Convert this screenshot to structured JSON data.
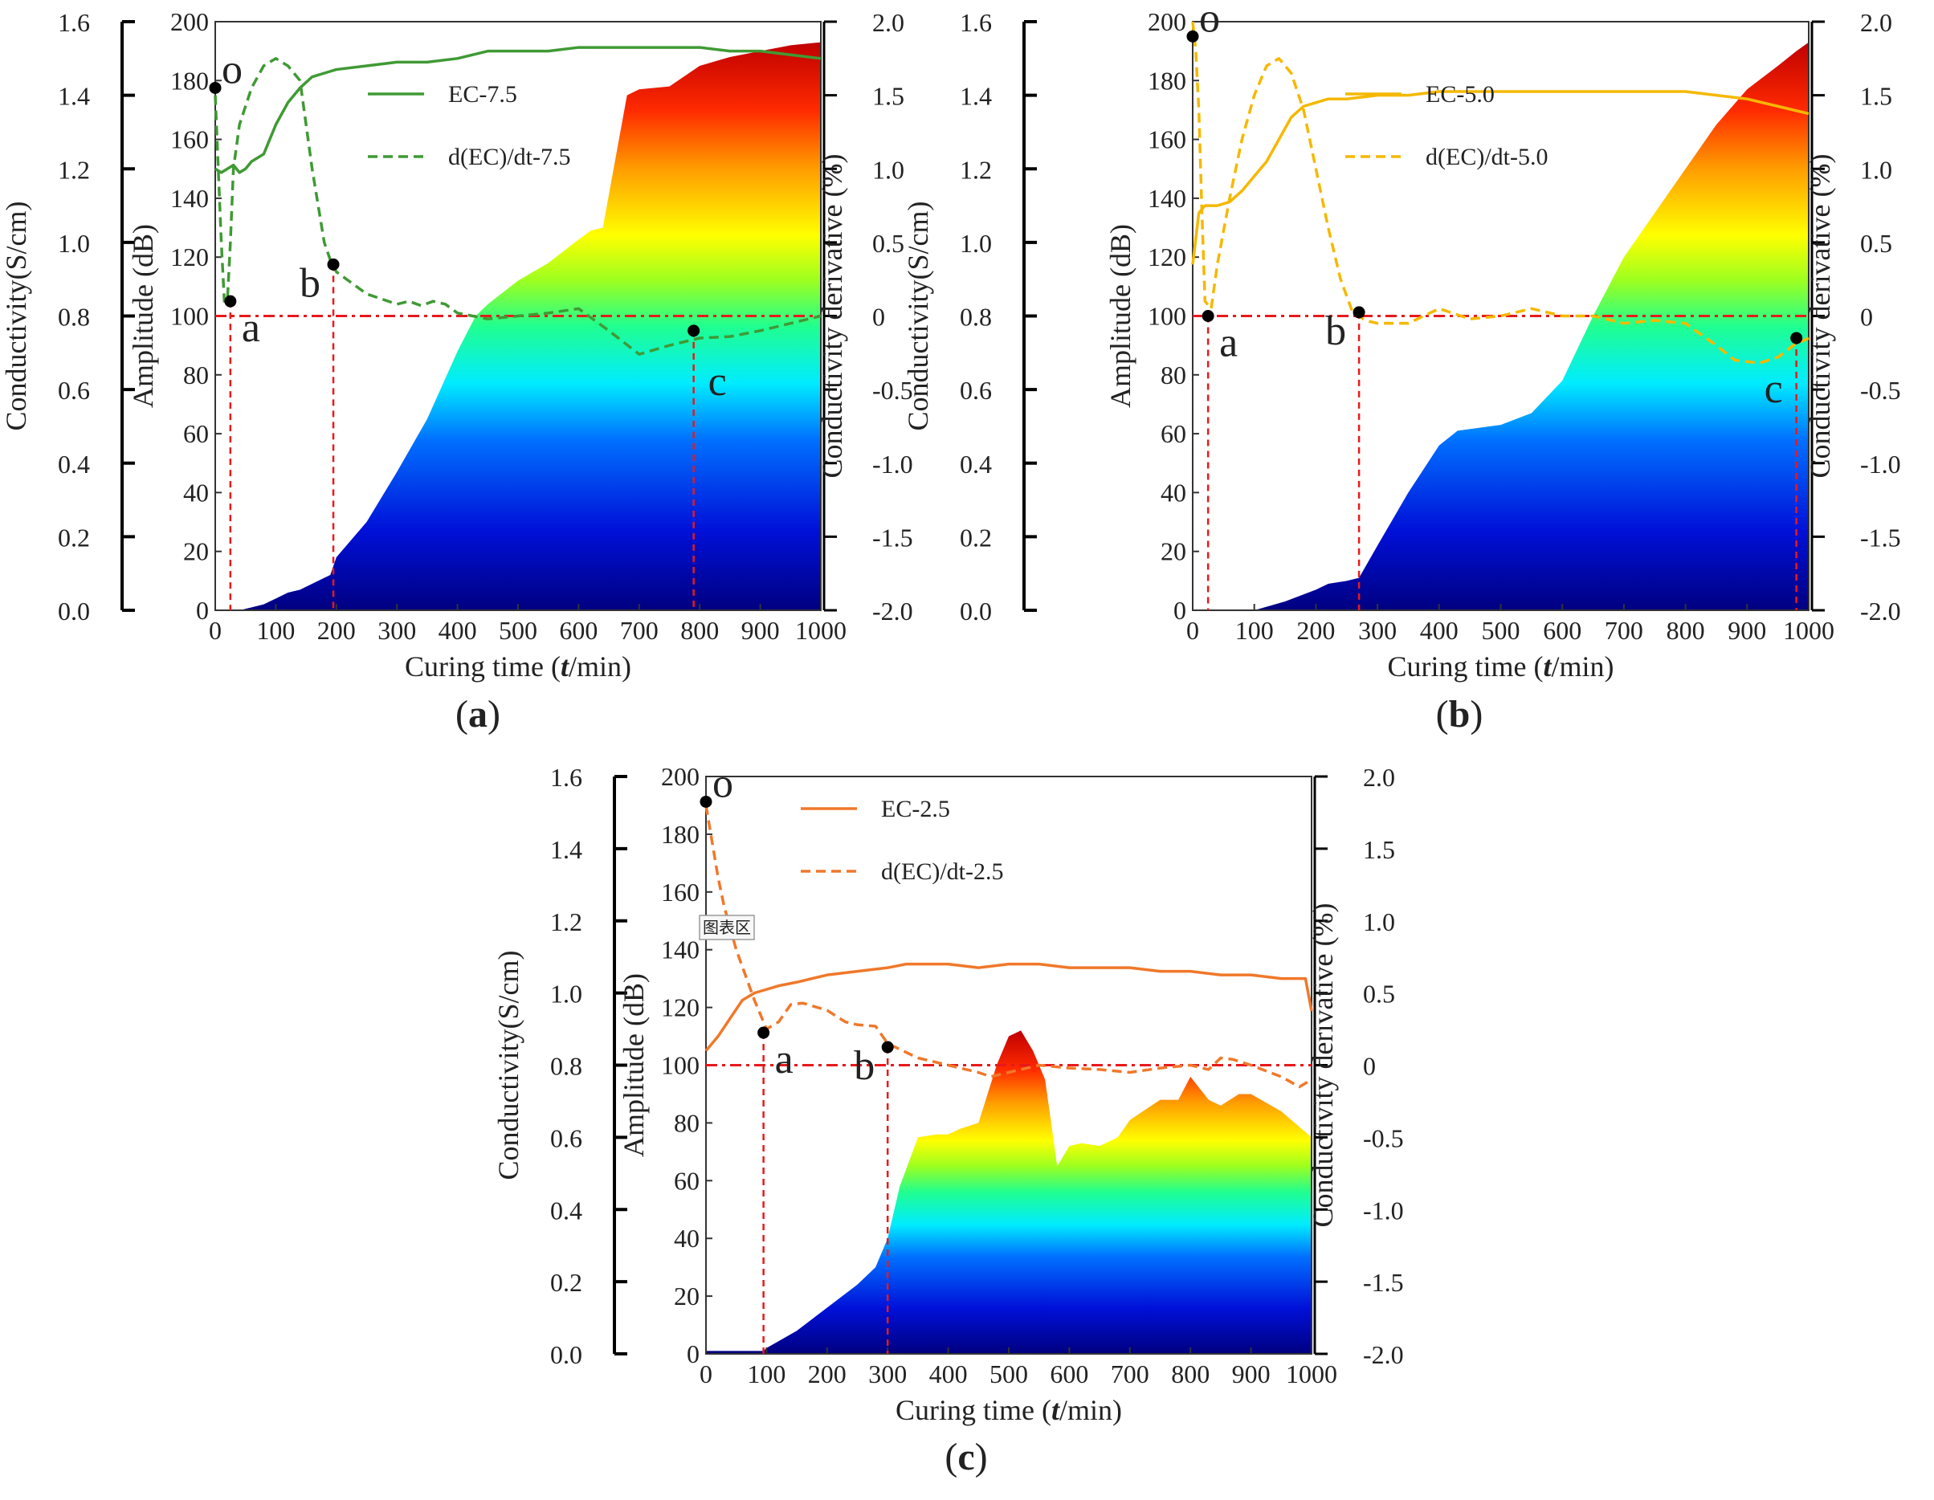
{
  "chart_data": [
    {
      "panel": "(a)",
      "panel_letter": "a",
      "type": "line",
      "xlabel": "Curing time (t/min)",
      "xlabel_pre": "Curing time (",
      "xlabel_t": "t",
      "xlabel_post": "/min)",
      "ylabel_left": "Conductivity(S/cm)",
      "ylabel_inner": "Amplitude (dB)",
      "ylabel_right": "Conductivity derivative (%)",
      "xlim": [
        0,
        1000
      ],
      "xticks": [
        "0",
        "100",
        "200",
        "300",
        "400",
        "500",
        "600",
        "700",
        "800",
        "900",
        "1000"
      ],
      "cond_ylim": [
        0,
        1.6
      ],
      "cond_ticks": [
        "0.0",
        "0.2",
        "0.4",
        "0.6",
        "0.8",
        "1.0",
        "1.2",
        "1.4",
        "1.6"
      ],
      "amp_ylim": [
        0,
        200
      ],
      "amp_ticks": [
        "0",
        "20",
        "40",
        "60",
        "80",
        "100",
        "120",
        "140",
        "160",
        "180",
        "200"
      ],
      "deriv_ylim": [
        -2,
        2
      ],
      "deriv_ticks": [
        "-2.0",
        "-1.5",
        "-1.0",
        "-0.5",
        "0",
        "0.5",
        "1.0",
        "1.5",
        "2.0"
      ],
      "color": "#3f9a34",
      "legend": {
        "ec": "EC-7.5",
        "deriv": "d(EC)/dt-7.5"
      },
      "series": [
        {
          "name": "EC-7.5",
          "style": "solid",
          "x": [
            0,
            10,
            20,
            30,
            40,
            50,
            60,
            70,
            80,
            100,
            120,
            140,
            160,
            180,
            200,
            250,
            300,
            350,
            400,
            450,
            500,
            550,
            600,
            650,
            700,
            750,
            800,
            850,
            900,
            950,
            1000
          ],
          "y": [
            1.2,
            1.19,
            1.2,
            1.21,
            1.19,
            1.2,
            1.22,
            1.23,
            1.24,
            1.32,
            1.38,
            1.42,
            1.45,
            1.46,
            1.47,
            1.48,
            1.49,
            1.49,
            1.5,
            1.52,
            1.52,
            1.52,
            1.53,
            1.53,
            1.53,
            1.53,
            1.53,
            1.52,
            1.52,
            1.51,
            1.5
          ]
        },
        {
          "name": "d(EC)/dt-7.5",
          "style": "dashed",
          "x": [
            0,
            10,
            15,
            20,
            25,
            30,
            40,
            60,
            80,
            100,
            120,
            140,
            160,
            180,
            190,
            200,
            250,
            300,
            320,
            340,
            360,
            380,
            400,
            450,
            500,
            550,
            600,
            650,
            700,
            750,
            800,
            850,
            900,
            950,
            1000
          ],
          "y": [
            1.5,
            0.5,
            0.1,
            0.1,
            0.5,
            1.0,
            1.3,
            1.55,
            1.7,
            1.75,
            1.7,
            1.6,
            1.0,
            0.5,
            0.38,
            0.3,
            0.15,
            0.08,
            0.1,
            0.07,
            0.1,
            0.08,
            0.02,
            -0.02,
            0,
            0.02,
            0.05,
            -0.1,
            -0.26,
            -0.2,
            -0.15,
            -0.14,
            -0.1,
            -0.05,
            0
          ]
        },
        {
          "name": "Amplitude",
          "style": "filled",
          "x": [
            0,
            20,
            40,
            60,
            80,
            100,
            120,
            140,
            160,
            180,
            190,
            195,
            200,
            250,
            300,
            350,
            400,
            430,
            450,
            500,
            550,
            600,
            620,
            640,
            680,
            700,
            750,
            800,
            850,
            900,
            950,
            1000
          ],
          "y": [
            0,
            0,
            0,
            1,
            2,
            4,
            6,
            7,
            9,
            11,
            12,
            15,
            18,
            30,
            47,
            65,
            88,
            100,
            104,
            112,
            118,
            126,
            129,
            130,
            175,
            177,
            178,
            185,
            188,
            190,
            192,
            193
          ]
        }
      ],
      "reference_lines": {
        "horizontal_deriv": 0,
        "vertical_x": [
          25,
          195,
          790
        ]
      },
      "points": [
        {
          "label": "o",
          "x": 0,
          "cond": 1.42
        },
        {
          "label": "a",
          "x": 25,
          "cond": 0.84
        },
        {
          "label": "b",
          "x": 195,
          "cond": 0.94
        },
        {
          "label": "c",
          "x": 790,
          "cond": 0.76
        }
      ]
    },
    {
      "panel": "(b)",
      "panel_letter": "b",
      "type": "line",
      "xlabel": "Curing time (t/min)",
      "xlabel_pre": "Curing time (",
      "xlabel_t": "t",
      "xlabel_post": "/min)",
      "ylabel_left": "Conductivity(S/cm)",
      "ylabel_inner": "Amplitude (dB)",
      "ylabel_right": "Conductivity derivative (%)",
      "xlim": [
        0,
        1000
      ],
      "xticks": [
        "0",
        "100",
        "200",
        "300",
        "400",
        "500",
        "600",
        "700",
        "800",
        "900",
        "1000"
      ],
      "cond_ylim": [
        0,
        1.6
      ],
      "cond_ticks": [
        "0.0",
        "0.2",
        "0.4",
        "0.6",
        "0.8",
        "1.0",
        "1.2",
        "1.4",
        "1.6"
      ],
      "amp_ylim": [
        0,
        200
      ],
      "amp_ticks": [
        "0",
        "20",
        "40",
        "60",
        "80",
        "100",
        "120",
        "140",
        "160",
        "180",
        "200"
      ],
      "deriv_ylim": [
        -2,
        2
      ],
      "deriv_ticks": [
        "-2.0",
        "-1.5",
        "-1.0",
        "-0.5",
        "0",
        "0.5",
        "1.0",
        "1.5",
        "2.0"
      ],
      "color": "#f5b800",
      "legend": {
        "ec": "EC-5.0",
        "deriv": "d(EC)/dt-5.0"
      },
      "series": [
        {
          "name": "EC-5.0",
          "style": "solid",
          "x": [
            0,
            10,
            20,
            40,
            60,
            80,
            100,
            120,
            140,
            160,
            180,
            200,
            220,
            250,
            300,
            350,
            400,
            450,
            500,
            550,
            600,
            650,
            700,
            750,
            800,
            850,
            900,
            950,
            1000
          ],
          "y": [
            0.94,
            1.08,
            1.1,
            1.1,
            1.11,
            1.14,
            1.18,
            1.22,
            1.28,
            1.34,
            1.37,
            1.38,
            1.39,
            1.39,
            1.4,
            1.4,
            1.41,
            1.41,
            1.41,
            1.41,
            1.41,
            1.41,
            1.41,
            1.41,
            1.41,
            1.4,
            1.39,
            1.37,
            1.35
          ]
        },
        {
          "name": "d(EC)/dt-5.0",
          "style": "dashed",
          "x": [
            0,
            5,
            10,
            15,
            20,
            30,
            40,
            60,
            80,
            100,
            120,
            140,
            160,
            180,
            200,
            220,
            240,
            260,
            270,
            280,
            300,
            350,
            400,
            450,
            500,
            550,
            600,
            650,
            700,
            750,
            800,
            850,
            880,
            920,
            950,
            975,
            1000
          ],
          "y": [
            2.0,
            1.8,
            1.4,
            0.7,
            0.1,
            0.05,
            0.35,
            0.8,
            1.2,
            1.5,
            1.7,
            1.75,
            1.65,
            1.4,
            1.0,
            0.6,
            0.25,
            0.02,
            0,
            -0.03,
            -0.05,
            -0.05,
            0.05,
            -0.02,
            0,
            0.05,
            0,
            0,
            -0.05,
            -0.03,
            -0.05,
            -0.2,
            -0.3,
            -0.32,
            -0.28,
            -0.2,
            -0.15
          ]
        },
        {
          "name": "Amplitude",
          "style": "filled",
          "x": [
            0,
            50,
            100,
            150,
            200,
            220,
            250,
            270,
            300,
            350,
            400,
            430,
            500,
            550,
            600,
            650,
            680,
            700,
            750,
            800,
            850,
            900,
            950,
            980,
            1000
          ],
          "y": [
            0,
            0,
            0,
            3,
            7,
            9,
            10,
            11,
            22,
            40,
            56,
            61,
            63,
            67,
            78,
            100,
            112,
            120,
            135,
            150,
            165,
            177,
            185,
            190,
            193
          ]
        }
      ],
      "reference_lines": {
        "horizontal_deriv": 0,
        "vertical_x": [
          25,
          270,
          980
        ]
      },
      "points": [
        {
          "label": "o",
          "x": 0,
          "cond": 1.56
        },
        {
          "label": "a",
          "x": 25,
          "cond": 0.8
        },
        {
          "label": "b",
          "x": 270,
          "cond": 0.81
        },
        {
          "label": "c",
          "x": 980,
          "cond": 0.74
        }
      ]
    },
    {
      "panel": "(c)",
      "panel_letter": "c",
      "type": "line",
      "xlabel": "Curing time (t/min)",
      "xlabel_pre": "Curing time (",
      "xlabel_t": "t",
      "xlabel_post": "/min)",
      "ylabel_left": "Conductivity(S/cm)",
      "ylabel_inner": "Amplitude (dB)",
      "ylabel_right": "Conductivity derivative (%)",
      "xlim": [
        0,
        1000
      ],
      "xticks": [
        "0",
        "100",
        "200",
        "300",
        "400",
        "500",
        "600",
        "700",
        "800",
        "900",
        "1000"
      ],
      "cond_ylim": [
        0,
        1.6
      ],
      "cond_ticks": [
        "0.0",
        "0.2",
        "0.4",
        "0.6",
        "0.8",
        "1.0",
        "1.2",
        "1.4",
        "1.6"
      ],
      "amp_ylim": [
        0,
        200
      ],
      "amp_ticks": [
        "0",
        "20",
        "40",
        "60",
        "80",
        "100",
        "120",
        "140",
        "160",
        "180",
        "200"
      ],
      "deriv_ylim": [
        -2,
        2
      ],
      "deriv_ticks": [
        "-2.0",
        "-1.5",
        "-1.0",
        "-0.5",
        "0",
        "0.5",
        "1.0",
        "1.5",
        "2.0"
      ],
      "color": "#f0782a",
      "legend": {
        "ec": "EC-2.5",
        "deriv": "d(EC)/dt-2.5"
      },
      "tooltip_text": "图表区",
      "series": [
        {
          "name": "EC-2.5",
          "style": "solid",
          "x": [
            0,
            20,
            40,
            60,
            80,
            100,
            120,
            150,
            200,
            250,
            300,
            330,
            350,
            400,
            450,
            500,
            550,
            600,
            650,
            700,
            750,
            800,
            850,
            900,
            950,
            990,
            1000
          ],
          "y": [
            0.84,
            0.88,
            0.93,
            0.98,
            1.0,
            1.01,
            1.02,
            1.03,
            1.05,
            1.06,
            1.07,
            1.08,
            1.08,
            1.08,
            1.07,
            1.08,
            1.08,
            1.07,
            1.07,
            1.07,
            1.06,
            1.06,
            1.05,
            1.05,
            1.04,
            1.04,
            0.95
          ]
        },
        {
          "name": "d(EC)/dt-2.5",
          "style": "dashed",
          "x": [
            0,
            10,
            20,
            30,
            50,
            80,
            100,
            120,
            140,
            160,
            200,
            230,
            250,
            280,
            300,
            350,
            400,
            450,
            470,
            500,
            550,
            600,
            650,
            700,
            750,
            800,
            830,
            850,
            870,
            900,
            950,
            980,
            1000
          ],
          "y": [
            1.8,
            1.55,
            1.3,
            1.1,
            0.8,
            0.45,
            0.25,
            0.3,
            0.42,
            0.43,
            0.38,
            0.3,
            0.28,
            0.27,
            0.15,
            0.05,
            0,
            -0.05,
            -0.08,
            -0.05,
            0,
            -0.02,
            -0.03,
            -0.05,
            -0.02,
            0,
            -0.03,
            0.05,
            0.04,
            0,
            -0.08,
            -0.15,
            -0.1
          ]
        },
        {
          "name": "Amplitude",
          "style": "filled",
          "x": [
            0,
            95,
            100,
            150,
            200,
            250,
            280,
            300,
            320,
            350,
            380,
            400,
            420,
            450,
            480,
            500,
            520,
            540,
            560,
            580,
            600,
            620,
            650,
            680,
            700,
            750,
            780,
            800,
            830,
            850,
            880,
            900,
            950,
            1000
          ],
          "y": [
            1,
            1,
            2,
            8,
            16,
            24,
            30,
            40,
            58,
            75,
            76,
            76,
            78,
            80,
            100,
            110,
            112,
            105,
            95,
            65,
            72,
            73,
            72,
            75,
            81,
            88,
            88,
            96,
            88,
            86,
            90,
            90,
            84,
            75
          ]
        }
      ],
      "reference_lines": {
        "horizontal_deriv": 0,
        "vertical_x": [
          95,
          300
        ]
      },
      "points": [
        {
          "label": "o",
          "x": 0,
          "cond": 1.53
        },
        {
          "label": "a",
          "x": 95,
          "cond": 0.89
        },
        {
          "label": "b",
          "x": 300,
          "cond": 0.85
        }
      ]
    }
  ]
}
